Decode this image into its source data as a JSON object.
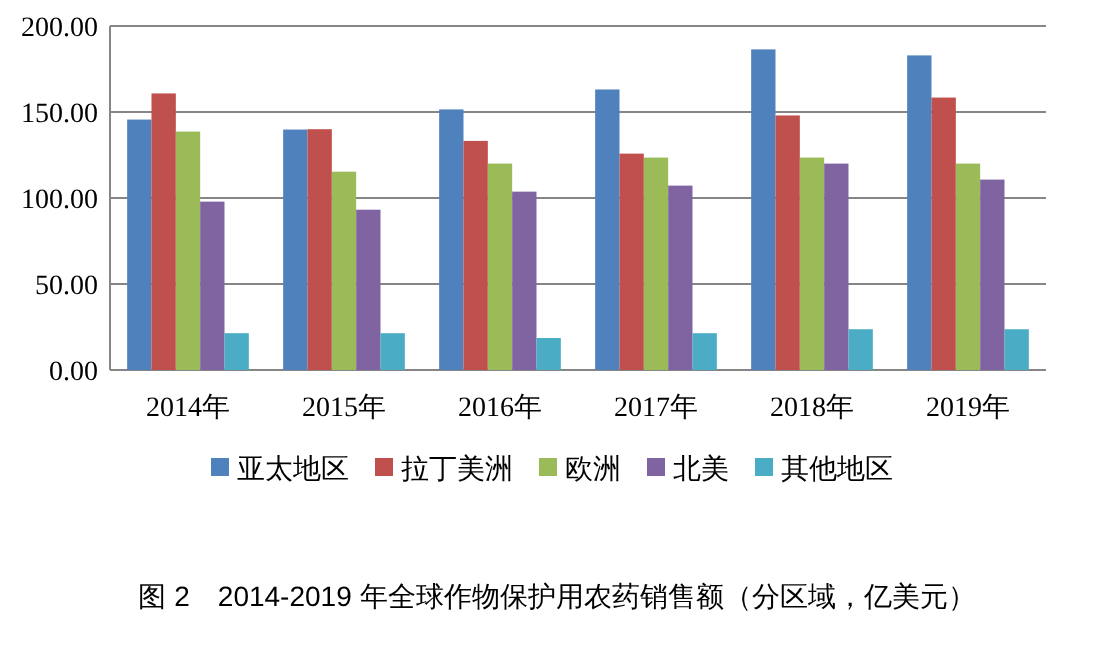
{
  "chart_data": {
    "type": "bar",
    "title": "图 2　2014-2019 年全球作物保护用农药销售额（分区域，亿美元）",
    "categories": [
      "2014年",
      "2015年",
      "2016年",
      "2017年",
      "2018年",
      "2019年"
    ],
    "series": [
      {
        "name": "亚太地区",
        "color": "#4f81bd",
        "values": [
          145.6,
          139.8,
          151.5,
          163.1,
          186.4,
          182.9
        ]
      },
      {
        "name": "拉丁美洲",
        "color": "#c0504d",
        "values": [
          160.8,
          140.0,
          133.2,
          125.8,
          148.0,
          158.4
        ]
      },
      {
        "name": "欧洲",
        "color": "#9bbb59",
        "values": [
          138.6,
          115.3,
          120.0,
          123.5,
          123.5,
          120.0
        ]
      },
      {
        "name": "北美",
        "color": "#8064a2",
        "values": [
          97.9,
          93.2,
          103.7,
          107.2,
          120.0,
          110.7
        ]
      },
      {
        "name": "其他地区",
        "color": "#4bacc6",
        "values": [
          21.4,
          21.4,
          18.6,
          21.4,
          23.7,
          23.7
        ]
      }
    ],
    "ylim": [
      0,
      200
    ],
    "yticks": [
      {
        "value": 0,
        "label": "0.00"
      },
      {
        "value": 50,
        "label": "50.00"
      },
      {
        "value": 100,
        "label": "100.00"
      },
      {
        "value": 150,
        "label": "150.00"
      },
      {
        "value": 200,
        "label": "200.00"
      }
    ],
    "grid": "y",
    "legend": "bottom"
  }
}
